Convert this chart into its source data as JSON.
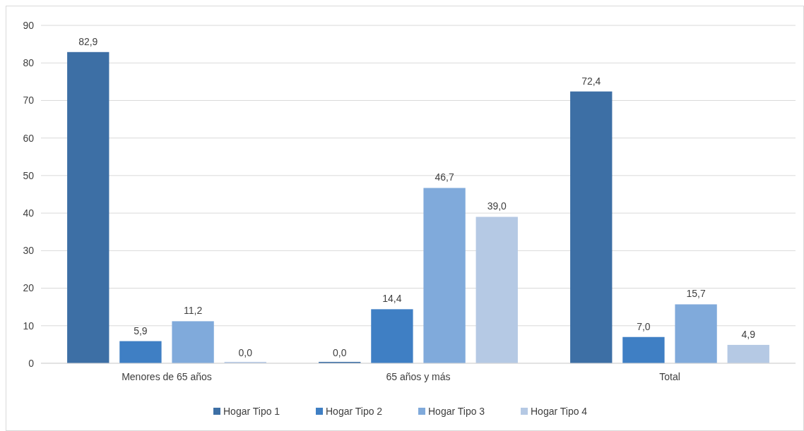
{
  "chart_data": {
    "type": "bar",
    "categories": [
      "Menores de 65 años",
      "65 años y más",
      "Total"
    ],
    "series": [
      {
        "name": "Hogar Tipo 1",
        "color": "#3d6fa5",
        "values": [
          82.9,
          0.0,
          72.4
        ],
        "value_labels": [
          "82,9",
          "0,0",
          "72,4"
        ]
      },
      {
        "name": "Hogar Tipo 2",
        "color": "#3f7fc4",
        "values": [
          5.9,
          14.4,
          7.0
        ],
        "value_labels": [
          "5,9",
          "14,4",
          "7,0"
        ]
      },
      {
        "name": "Hogar Tipo 3",
        "color": "#80aadb",
        "values": [
          11.2,
          46.7,
          15.7
        ],
        "value_labels": [
          "11,2",
          "46,7",
          "15,7"
        ]
      },
      {
        "name": "Hogar Tipo 4",
        "color": "#b5c9e4",
        "values": [
          0.0,
          39.0,
          4.9
        ],
        "value_labels": [
          "0,0",
          "39,0",
          "4,9"
        ]
      }
    ],
    "ylim": [
      0,
      90
    ],
    "yticks": [
      0,
      10,
      20,
      30,
      40,
      50,
      60,
      70,
      80,
      90
    ],
    "grid": "y",
    "legend": "bottom"
  }
}
